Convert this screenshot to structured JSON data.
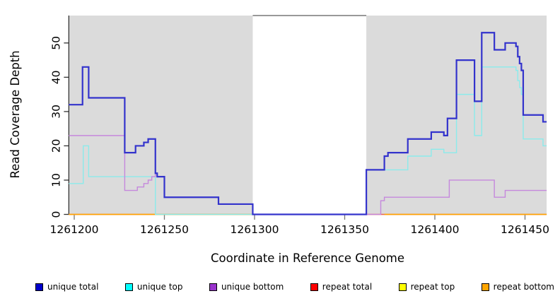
{
  "figure": {
    "background_color": "#FFFFFF",
    "plot_background_color": "#DBDBDB",
    "gap_border_color": "#999999",
    "axis_color": "#333333",
    "x_tick_color": "#777777"
  },
  "chart_data": {
    "type": "line",
    "style": "step",
    "title": "",
    "xlabel": "Coordinate in Reference Genome",
    "ylabel": "Read Coverage Depth",
    "xlim": [
      1261197,
      1261462
    ],
    "ylim": [
      0,
      58
    ],
    "grid": false,
    "x_ticks": [
      1261200,
      1261250,
      1261300,
      1261350,
      1261400,
      1261450
    ],
    "x_tick_labels": [
      "1261200",
      "1261250",
      "1261300",
      "1261350",
      "1261400",
      "1261450"
    ],
    "y_ticks": [
      0,
      10,
      20,
      30,
      40,
      50
    ],
    "y_tick_labels": [
      "0",
      "10",
      "20",
      "30",
      "40",
      "50"
    ],
    "covered_regions": [
      [
        1261197,
        1261299
      ],
      [
        1261362,
        1261462
      ]
    ],
    "gap_region": [
      1261299,
      1261362
    ],
    "legend_position": "bottom-horizontal",
    "series": [
      {
        "id": "repeat-top",
        "label": "repeat top",
        "line_color": "#FFFF55",
        "line_width": 1.4,
        "segments": [
          [
            [
              1261197,
              0
            ],
            [
              1261299,
              0
            ]
          ],
          [
            [
              1261362,
              0
            ],
            [
              1261462,
              0
            ]
          ]
        ]
      },
      {
        "id": "repeat-total",
        "label": "repeat total",
        "line_color": "#E86060",
        "line_width": 1.4,
        "segments": [
          [
            [
              1261197,
              0
            ],
            [
              1261299,
              0
            ]
          ],
          [
            [
              1261362,
              0
            ],
            [
              1261462,
              0
            ]
          ]
        ]
      },
      {
        "id": "repeat-bottom",
        "label": "repeat bottom",
        "line_color": "#FFA400",
        "line_width": 1.6,
        "segments": [
          [
            [
              1261197,
              0
            ],
            [
              1261299,
              0
            ]
          ],
          [
            [
              1261372,
              0
            ],
            [
              1261462,
              0
            ]
          ]
        ]
      },
      {
        "id": "unique-top",
        "label": "unique top",
        "line_color": "#8BEBEB",
        "line_width": 1.4,
        "segments": [
          [
            [
              1261197,
              9
            ],
            [
              1261205,
              20
            ],
            [
              1261208,
              11
            ],
            [
              1261245,
              0
            ],
            [
              1261362,
              13
            ],
            [
              1261385,
              17
            ],
            [
              1261398,
              19
            ],
            [
              1261405,
              18
            ],
            [
              1261412,
              35
            ],
            [
              1261422,
              23
            ],
            [
              1261426,
              43
            ],
            [
              1261445,
              42
            ],
            [
              1261446,
              39
            ],
            [
              1261447,
              37
            ],
            [
              1261448,
              35
            ],
            [
              1261449,
              22
            ],
            [
              1261460,
              20
            ],
            [
              1261462,
              20
            ]
          ]
        ]
      },
      {
        "id": "unique-bottom",
        "label": "unique bottom",
        "line_color": "#C588DC",
        "line_width": 1.4,
        "segments": [
          [
            [
              1261197,
              23
            ],
            [
              1261228,
              7
            ],
            [
              1261235,
              8
            ],
            [
              1261238.6,
              9
            ],
            [
              1261241,
              10
            ],
            [
              1261243,
              11
            ],
            [
              1261245,
              12
            ],
            [
              1261246,
              11
            ],
            [
              1261250,
              5
            ],
            [
              1261280,
              3
            ],
            [
              1261299,
              0
            ],
            [
              1261370,
              4
            ],
            [
              1261372,
              5
            ],
            [
              1261408,
              10
            ],
            [
              1261433,
              5
            ],
            [
              1261439,
              7
            ],
            [
              1261462,
              7
            ]
          ]
        ]
      },
      {
        "id": "unique-total",
        "label": "unique total",
        "line_color": "#3333CC",
        "line_width": 2.2,
        "segments": [
          [
            [
              1261197,
              32
            ],
            [
              1261204.6,
              43
            ],
            [
              1261208,
              34
            ],
            [
              1261228,
              18
            ],
            [
              1261234,
              20
            ],
            [
              1261238.6,
              21
            ],
            [
              1261241,
              22
            ],
            [
              1261245,
              12
            ],
            [
              1261246,
              11
            ],
            [
              1261250,
              5
            ],
            [
              1261280,
              3
            ],
            [
              1261299,
              0
            ],
            [
              1261362,
              13
            ],
            [
              1261372,
              17
            ],
            [
              1261374,
              18
            ],
            [
              1261385,
              22
            ],
            [
              1261398,
              24
            ],
            [
              1261405,
              23
            ],
            [
              1261407,
              28
            ],
            [
              1261412,
              45
            ],
            [
              1261422,
              33
            ],
            [
              1261426,
              53
            ],
            [
              1261433,
              48
            ],
            [
              1261439,
              50
            ],
            [
              1261445,
              49
            ],
            [
              1261446,
              46
            ],
            [
              1261447,
              44
            ],
            [
              1261448,
              42
            ],
            [
              1261449,
              29
            ],
            [
              1261460,
              27
            ],
            [
              1261462,
              27
            ]
          ]
        ]
      }
    ]
  },
  "legend": {
    "items": [
      {
        "label": "unique total",
        "swatch_color": "#0000CC"
      },
      {
        "label": "unique top",
        "swatch_color": "#00FFFF"
      },
      {
        "label": "unique bottom",
        "swatch_color": "#9933CC"
      },
      {
        "label": "repeat total",
        "swatch_color": "#FF0000"
      },
      {
        "label": "repeat top",
        "swatch_color": "#FFFF00"
      },
      {
        "label": "repeat bottom",
        "swatch_color": "#FFA500"
      }
    ]
  }
}
